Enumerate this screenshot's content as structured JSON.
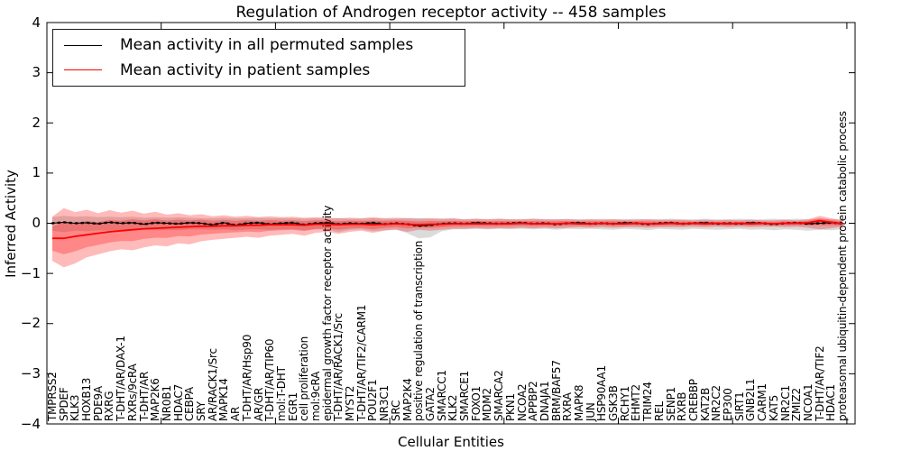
{
  "figure": {
    "title": "Regulation of Androgen receptor activity -- 458 samples"
  },
  "legend": {
    "items": [
      {
        "label": "Mean activity in all permuted samples",
        "color": "#000000"
      },
      {
        "label": "Mean activity in patient samples",
        "color": "#ff0000"
      }
    ],
    "position": "upper left"
  },
  "chart_data": {
    "type": "line",
    "title": "Regulation of Androgen receptor activity -- 458 samples",
    "xlabel": "Cellular Entities",
    "ylabel": "Inferred Activity",
    "ylim": [
      -4,
      4
    ],
    "yticks": [
      4,
      3,
      2,
      1,
      0,
      -1,
      -2,
      -3,
      -4
    ],
    "grid": false,
    "legend_position": "upper left",
    "categories": [
      "TMPRSS2",
      "SPDEF",
      "KLK3",
      "HOXB13",
      "PDE9A",
      "RXRG",
      "T-DHT/AR/DAX-1",
      "RXRs/9cRA",
      "T-DHT/AR",
      "MAP2K6",
      "NR0B1",
      "HDAC7",
      "CEBPA",
      "SRY",
      "AR/RACK1/Src",
      "MAPK14",
      "AR",
      "T-DHT/AR/Hsp90",
      "AR/GR",
      "T-DHT/AR/TIP60",
      "mol:T-DHT",
      "EGR1",
      "cell proliferation",
      "mol:9cRA",
      "epidermal growth factor receptor activity",
      "T-DHT/AR/RACK1/Src",
      "MYST2",
      "T-DHT/AR/TIF2/CARM1",
      "POU2F1",
      "NR3C1",
      "SRC",
      "MAP2K4",
      "positive regulation of transcription",
      "GATA2",
      "SMARCC1",
      "KLK2",
      "SMARCE1",
      "FOXO1",
      "MDM2",
      "SMARCA2",
      "PKN1",
      "NCOA2",
      "APPBP2",
      "DNAJA1",
      "BRM/BAF57",
      "RXRA",
      "MAPK8",
      "JUN",
      "HSP90AA1",
      "GSK3B",
      "RCHY1",
      "EHMT2",
      "TRIM24",
      "REL",
      "SENP1",
      "RXRB",
      "CREBBP",
      "KAT2B",
      "NR2C2",
      "EP300",
      "SIRT1",
      "GNB2L1",
      "CARM1",
      "KAT5",
      "NR2C1",
      "ZMIZ2",
      "NCOA1",
      "T-DHT/AR/TIF2",
      "HDAC1",
      "proteasomal ubiquitin-dependent protein catabolic process"
    ],
    "series": [
      {
        "name": "Mean activity in all permuted samples",
        "color": "#000000",
        "line_style": "solid with dot markers",
        "band_color": "rgba(0,0,0,0.14)",
        "values": [
          0.0,
          0.02,
          0.0,
          0.01,
          -0.01,
          0.02,
          0.0,
          0.01,
          -0.02,
          0.01,
          0.0,
          -0.01,
          0.01,
          0.0,
          -0.03,
          0.01,
          -0.04,
          0.0,
          0.01,
          -0.02,
          0.0,
          0.01,
          -0.03,
          0.0,
          0.01,
          -0.02,
          0.0,
          -0.01,
          0.01,
          -0.02,
          0.0,
          -0.02,
          -0.05,
          -0.04,
          -0.01,
          0.0,
          -0.01,
          0.01,
          0.0,
          -0.01,
          0.0,
          0.01,
          -0.01,
          0.0,
          -0.02,
          0.0,
          0.01,
          -0.01,
          0.0,
          -0.01,
          0.01,
          0.0,
          -0.02,
          0.0,
          0.01,
          -0.01,
          0.0,
          0.01,
          -0.01,
          0.0,
          -0.01,
          0.01,
          0.0,
          -0.02,
          0.0,
          0.01,
          -0.01,
          0.0,
          0.01,
          0.0
        ],
        "band_upper": [
          0.12,
          0.15,
          0.13,
          0.14,
          0.12,
          0.13,
          0.12,
          0.13,
          0.11,
          0.12,
          0.11,
          0.12,
          0.11,
          0.1,
          0.1,
          0.11,
          0.1,
          0.1,
          0.11,
          0.1,
          0.1,
          0.1,
          0.09,
          0.1,
          0.09,
          0.1,
          0.09,
          0.09,
          0.1,
          0.09,
          0.09,
          0.1,
          0.1,
          0.09,
          0.09,
          0.09,
          0.08,
          0.09,
          0.08,
          0.09,
          0.08,
          0.08,
          0.09,
          0.08,
          0.08,
          0.09,
          0.08,
          0.08,
          0.09,
          0.08,
          0.08,
          0.09,
          0.08,
          0.08,
          0.09,
          0.08,
          0.08,
          0.09,
          0.08,
          0.08,
          0.09,
          0.08,
          0.08,
          0.09,
          0.08,
          0.09,
          0.08,
          0.09,
          0.08,
          0.08
        ],
        "band_lower": [
          -0.15,
          -0.18,
          -0.15,
          -0.16,
          -0.14,
          -0.15,
          -0.14,
          -0.15,
          -0.13,
          -0.14,
          -0.13,
          -0.14,
          -0.12,
          -0.12,
          -0.13,
          -0.12,
          -0.14,
          -0.12,
          -0.12,
          -0.13,
          -0.12,
          -0.12,
          -0.14,
          -0.12,
          -0.13,
          -0.18,
          -0.13,
          -0.12,
          -0.16,
          -0.14,
          -0.12,
          -0.2,
          -0.3,
          -0.28,
          -0.16,
          -0.12,
          -0.12,
          -0.11,
          -0.12,
          -0.11,
          -0.12,
          -0.11,
          -0.12,
          -0.11,
          -0.13,
          -0.11,
          -0.12,
          -0.11,
          -0.12,
          -0.13,
          -0.11,
          -0.12,
          -0.14,
          -0.11,
          -0.12,
          -0.13,
          -0.11,
          -0.12,
          -0.13,
          -0.12,
          -0.11,
          -0.13,
          -0.12,
          -0.14,
          -0.12,
          -0.13,
          -0.15,
          -0.13,
          -0.14,
          -0.12
        ]
      },
      {
        "name": "Mean activity in patient samples",
        "color": "#ff0000",
        "line_style": "solid",
        "band_color": "rgba(255,0,0,0.27)",
        "values": [
          -0.3,
          -0.3,
          -0.26,
          -0.23,
          -0.2,
          -0.17,
          -0.15,
          -0.13,
          -0.11,
          -0.1,
          -0.09,
          -0.08,
          -0.07,
          -0.06,
          -0.06,
          -0.05,
          -0.05,
          -0.04,
          -0.04,
          -0.03,
          -0.03,
          -0.03,
          -0.04,
          -0.02,
          -0.02,
          -0.03,
          -0.02,
          -0.02,
          -0.03,
          -0.02,
          -0.01,
          -0.02,
          -0.03,
          -0.02,
          -0.02,
          -0.01,
          -0.01,
          -0.01,
          -0.01,
          -0.01,
          -0.01,
          0.0,
          -0.01,
          -0.01,
          -0.01,
          0.0,
          -0.01,
          -0.01,
          0.0,
          -0.01,
          -0.01,
          0.0,
          -0.01,
          -0.01,
          0.0,
          -0.01,
          0.0,
          -0.01,
          0.0,
          -0.01,
          0.0,
          -0.01,
          0.0,
          -0.01,
          0.0,
          0.0,
          0.01,
          0.05,
          0.02,
          -0.01
        ],
        "band_upper": [
          0.13,
          0.3,
          0.22,
          0.27,
          0.2,
          0.26,
          0.21,
          0.25,
          0.19,
          0.23,
          0.17,
          0.2,
          0.16,
          0.18,
          0.14,
          0.16,
          0.13,
          0.15,
          0.12,
          0.14,
          0.12,
          0.13,
          0.11,
          0.12,
          0.11,
          0.1,
          0.11,
          0.1,
          0.12,
          0.1,
          0.11,
          0.1,
          0.09,
          0.1,
          0.09,
          0.1,
          0.08,
          0.09,
          0.08,
          0.09,
          0.08,
          0.08,
          0.09,
          0.08,
          0.08,
          0.08,
          0.07,
          0.08,
          0.07,
          0.08,
          0.07,
          0.07,
          0.08,
          0.07,
          0.07,
          0.07,
          0.06,
          0.07,
          0.06,
          0.07,
          0.06,
          0.07,
          0.06,
          0.06,
          0.07,
          0.06,
          0.08,
          0.15,
          0.1,
          0.06
        ],
        "band_lower": [
          -0.75,
          -0.88,
          -0.8,
          -0.68,
          -0.62,
          -0.56,
          -0.52,
          -0.54,
          -0.48,
          -0.44,
          -0.46,
          -0.4,
          -0.42,
          -0.36,
          -0.33,
          -0.31,
          -0.29,
          -0.27,
          -0.29,
          -0.25,
          -0.23,
          -0.21,
          -0.25,
          -0.19,
          -0.17,
          -0.21,
          -0.17,
          -0.15,
          -0.19,
          -0.15,
          -0.13,
          -0.17,
          -0.13,
          -0.15,
          -0.13,
          -0.11,
          -0.11,
          -0.1,
          -0.11,
          -0.1,
          -0.1,
          -0.09,
          -0.1,
          -0.09,
          -0.1,
          -0.09,
          -0.08,
          -0.09,
          -0.08,
          -0.09,
          -0.08,
          -0.08,
          -0.09,
          -0.08,
          -0.08,
          -0.08,
          -0.07,
          -0.08,
          -0.07,
          -0.08,
          -0.07,
          -0.08,
          -0.07,
          -0.07,
          -0.08,
          -0.07,
          -0.09,
          -0.12,
          -0.1,
          -0.07
        ]
      }
    ]
  }
}
